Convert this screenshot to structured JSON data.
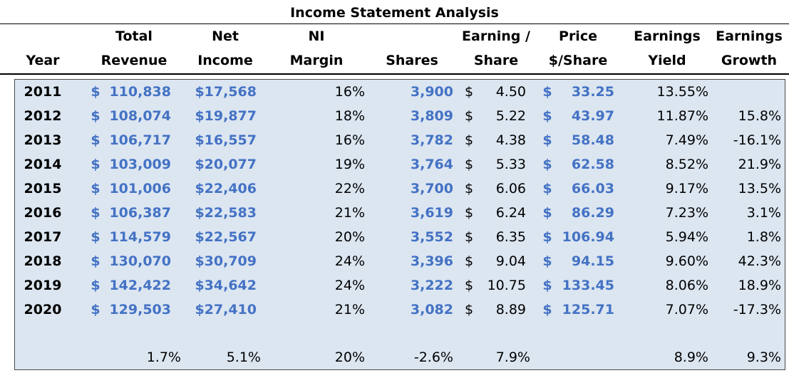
{
  "title": "Income Statement Analysis",
  "headers": {
    "year": [
      "",
      "Year"
    ],
    "revenue": [
      "Total",
      "Revenue"
    ],
    "net_income": [
      "Net",
      "Income"
    ],
    "ni_margin": [
      "NI",
      "Margin"
    ],
    "shares": [
      "",
      "Shares"
    ],
    "eps": [
      "Earning /",
      "Share"
    ],
    "price": [
      "Price",
      "$/Share"
    ],
    "yield": [
      "Earnings",
      "Yield"
    ],
    "growth": [
      "Earnings",
      "Growth"
    ]
  },
  "rows": [
    {
      "year": "2011",
      "revenue": "110,838",
      "net_income": "$17,568",
      "ni_margin": "16%",
      "shares": "3,900",
      "eps": "4.50",
      "price": "33.25",
      "yield": "13.55%",
      "growth": ""
    },
    {
      "year": "2012",
      "revenue": "108,074",
      "net_income": "$19,877",
      "ni_margin": "18%",
      "shares": "3,809",
      "eps": "5.22",
      "price": "43.97",
      "yield": "11.87%",
      "growth": "15.8%"
    },
    {
      "year": "2013",
      "revenue": "106,717",
      "net_income": "$16,557",
      "ni_margin": "16%",
      "shares": "3,782",
      "eps": "4.38",
      "price": "58.48",
      "yield": "7.49%",
      "growth": "-16.1%"
    },
    {
      "year": "2014",
      "revenue": "103,009",
      "net_income": "$20,077",
      "ni_margin": "19%",
      "shares": "3,764",
      "eps": "5.33",
      "price": "62.58",
      "yield": "8.52%",
      "growth": "21.9%"
    },
    {
      "year": "2015",
      "revenue": "101,006",
      "net_income": "$22,406",
      "ni_margin": "22%",
      "shares": "3,700",
      "eps": "6.06",
      "price": "66.03",
      "yield": "9.17%",
      "growth": "13.5%"
    },
    {
      "year": "2016",
      "revenue": "106,387",
      "net_income": "$22,583",
      "ni_margin": "21%",
      "shares": "3,619",
      "eps": "6.24",
      "price": "86.29",
      "yield": "7.23%",
      "growth": "3.1%"
    },
    {
      "year": "2017",
      "revenue": "114,579",
      "net_income": "$22,567",
      "ni_margin": "20%",
      "shares": "3,552",
      "eps": "6.35",
      "price": "106.94",
      "yield": "5.94%",
      "growth": "1.8%"
    },
    {
      "year": "2018",
      "revenue": "130,070",
      "net_income": "$30,709",
      "ni_margin": "24%",
      "shares": "3,396",
      "eps": "9.04",
      "price": "94.15",
      "yield": "9.60%",
      "growth": "42.3%"
    },
    {
      "year": "2019",
      "revenue": "142,422",
      "net_income": "$34,642",
      "ni_margin": "24%",
      "shares": "3,222",
      "eps": "10.75",
      "price": "133.45",
      "yield": "8.06%",
      "growth": "18.9%"
    },
    {
      "year": "2020",
      "revenue": "129,503",
      "net_income": "$27,410",
      "ni_margin": "21%",
      "shares": "3,082",
      "eps": "8.89",
      "price": "125.71",
      "yield": "7.07%",
      "growth": "-17.3%"
    }
  ],
  "currency_symbol": "$",
  "summary": {
    "revenue": "1.7%",
    "net_income": "5.1%",
    "ni_margin": "20%",
    "shares": "-2.6%",
    "eps": "7.9%",
    "yield": "8.9%",
    "growth": "9.3%"
  },
  "colors": {
    "accent_blue": "#4472c4",
    "panel_fill": "#dce6f1"
  }
}
